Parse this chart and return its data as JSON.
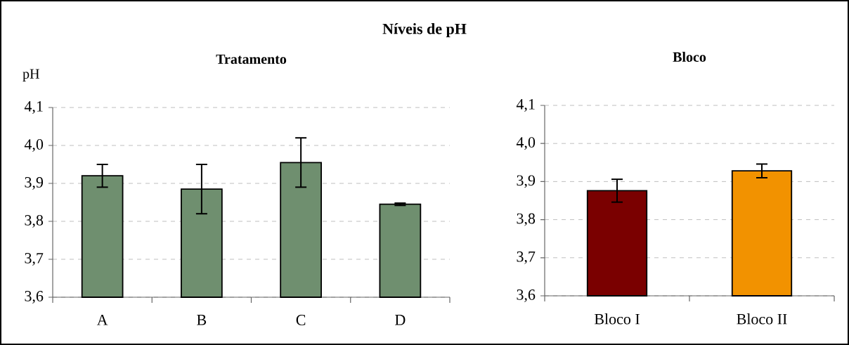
{
  "chart_data": [
    {
      "type": "bar",
      "title": "Níveis de pH",
      "subtitle": "Tratamento",
      "ylabel": "pH",
      "categories": [
        "A",
        "B",
        "C",
        "D"
      ],
      "values": [
        3.92,
        3.885,
        3.955,
        3.845
      ],
      "errors": [
        0.03,
        0.065,
        0.065,
        0.003
      ],
      "color": "#6f8f6f",
      "ylim": [
        3.6,
        4.1
      ],
      "yticks": [
        {
          "value": 3.6,
          "label": "3,6"
        },
        {
          "value": 3.7,
          "label": "3,7"
        },
        {
          "value": 3.8,
          "label": "3,8"
        },
        {
          "value": 3.9,
          "label": "3,9"
        },
        {
          "value": 4.0,
          "label": "4,0"
        },
        {
          "value": 4.1,
          "label": "4,1"
        }
      ],
      "grid": "y"
    },
    {
      "type": "bar",
      "title": "Bloco",
      "categories": [
        "Bloco I",
        "Bloco II"
      ],
      "values": [
        3.876,
        3.928
      ],
      "errors": [
        0.03,
        0.018
      ],
      "colors": [
        "#7a0000",
        "#f29200"
      ],
      "ylim": [
        3.6,
        4.1
      ],
      "yticks": [
        {
          "value": 3.6,
          "label": "3,6"
        },
        {
          "value": 3.7,
          "label": "3,7"
        },
        {
          "value": 3.8,
          "label": "3,8"
        },
        {
          "value": 3.9,
          "label": "3,9"
        },
        {
          "value": 4.0,
          "label": "4,0"
        },
        {
          "value": 4.1,
          "label": "4,1"
        }
      ],
      "grid": "y"
    }
  ]
}
